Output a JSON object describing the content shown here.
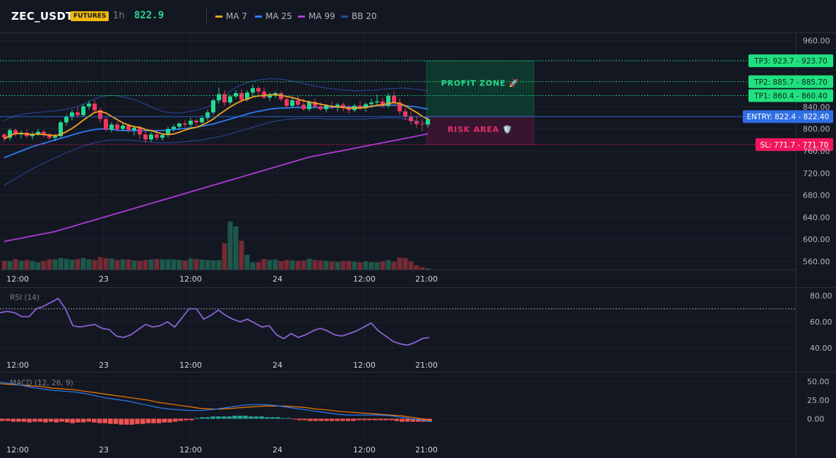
{
  "header": {
    "symbol": "ZEC_USDT",
    "badge": "FUTURES",
    "timeframe": "1h",
    "price": "822.9",
    "legend": [
      {
        "label": "MA 7",
        "color": "#f5a623"
      },
      {
        "label": "MA 25",
        "color": "#2d7cf6"
      },
      {
        "label": "MA 99",
        "color": "#b03ad8"
      },
      {
        "label": "BB 20",
        "color": "#2a4a9a"
      }
    ]
  },
  "colors": {
    "up": "#26d88e",
    "down": "#f2365d",
    "ma7": "#f5a623",
    "ma25": "#2d7cf6",
    "ma99": "#b03ad8",
    "bb": "#2a4a9a",
    "rsi": "#8a63d2",
    "macd": "#2d7cf6",
    "signal": "#f57c00",
    "hist_pos": "#26a69a",
    "hist_neg": "#ef5350",
    "tp": "#21e07f",
    "entry": "#2f6fe4",
    "sl": "#f2165d"
  },
  "chart_data": [
    {
      "type": "candlestick",
      "symbol": "ZEC_USDT",
      "ylim": [
        545,
        975
      ],
      "yticks": [
        "960.00",
        "840.00",
        "800.00",
        "760.00",
        "720.00",
        "680.00",
        "640.00",
        "600.00",
        "560.00"
      ],
      "xticks": [
        "12:00",
        "23",
        "12:00",
        "24",
        "12:00",
        "21:00"
      ],
      "candles": [
        [
          790,
          793,
          777,
          784
        ],
        [
          784,
          802,
          779,
          798
        ],
        [
          798,
          801,
          786,
          790
        ],
        [
          790,
          797,
          783,
          793
        ],
        [
          793,
          799,
          784,
          787
        ],
        [
          787,
          795,
          781,
          791
        ],
        [
          791,
          800,
          787,
          795
        ],
        [
          795,
          798,
          785,
          789
        ],
        [
          789,
          792,
          780,
          784
        ],
        [
          784,
          791,
          778,
          787
        ],
        [
          787,
          815,
          785,
          812
        ],
        [
          812,
          826,
          806,
          822
        ],
        [
          822,
          835,
          816,
          830
        ],
        [
          830,
          840,
          820,
          825
        ],
        [
          825,
          845,
          822,
          841
        ],
        [
          841,
          851,
          835,
          846
        ],
        [
          846,
          852,
          830,
          834
        ],
        [
          834,
          838,
          812,
          818
        ],
        [
          818,
          822,
          795,
          799
        ],
        [
          799,
          812,
          794,
          808
        ],
        [
          808,
          813,
          795,
          800
        ],
        [
          800,
          812,
          796,
          806
        ],
        [
          806,
          810,
          793,
          798
        ],
        [
          798,
          806,
          788,
          802
        ],
        [
          802,
          805,
          782,
          790
        ],
        [
          790,
          796,
          775,
          781
        ],
        [
          781,
          794,
          777,
          790
        ],
        [
          790,
          795,
          779,
          784
        ],
        [
          784,
          792,
          779,
          789
        ],
        [
          789,
          804,
          785,
          800
        ],
        [
          800,
          808,
          795,
          804
        ],
        [
          804,
          812,
          798,
          810
        ],
        [
          810,
          816,
          804,
          808
        ],
        [
          808,
          820,
          803,
          815
        ],
        [
          815,
          818,
          806,
          812
        ],
        [
          812,
          825,
          809,
          820
        ],
        [
          820,
          835,
          815,
          830
        ],
        [
          830,
          855,
          826,
          852
        ],
        [
          852,
          875,
          846,
          863
        ],
        [
          863,
          870,
          842,
          848
        ],
        [
          848,
          862,
          844,
          859
        ],
        [
          859,
          870,
          855,
          865
        ],
        [
          865,
          872,
          848,
          853
        ],
        [
          853,
          870,
          850,
          866
        ],
        [
          866,
          880,
          860,
          874
        ],
        [
          874,
          878,
          858,
          868
        ],
        [
          868,
          875,
          854,
          857
        ],
        [
          857,
          866,
          851,
          861
        ],
        [
          861,
          868,
          856,
          865
        ],
        [
          865,
          868,
          850,
          854
        ],
        [
          854,
          860,
          838,
          842
        ],
        [
          842,
          856,
          838,
          852
        ],
        [
          852,
          860,
          840,
          844
        ],
        [
          844,
          855,
          833,
          836
        ],
        [
          836,
          852,
          832,
          849
        ],
        [
          849,
          855,
          838,
          841
        ],
        [
          841,
          848,
          833,
          836
        ],
        [
          836,
          845,
          830,
          842
        ],
        [
          842,
          850,
          836,
          840
        ],
        [
          840,
          848,
          832,
          844
        ],
        [
          844,
          848,
          832,
          838
        ],
        [
          838,
          843,
          828,
          834
        ],
        [
          834,
          845,
          830,
          842
        ],
        [
          842,
          850,
          834,
          838
        ],
        [
          838,
          848,
          832,
          845
        ],
        [
          845,
          855,
          838,
          848
        ],
        [
          848,
          862,
          843,
          850
        ],
        [
          850,
          856,
          838,
          842
        ],
        [
          842,
          865,
          838,
          860
        ],
        [
          860,
          868,
          842,
          848
        ],
        [
          848,
          856,
          826,
          832
        ],
        [
          832,
          838,
          815,
          822
        ],
        [
          822,
          832,
          808,
          814
        ],
        [
          814,
          824,
          802,
          809
        ],
        [
          809,
          818,
          796,
          808
        ],
        [
          808,
          822,
          803,
          818
        ]
      ],
      "ma7": [
        782,
        788,
        792,
        792,
        791,
        790,
        791,
        790,
        789,
        788,
        790,
        795,
        801,
        808,
        816,
        823,
        830,
        832,
        829,
        823,
        817,
        811,
        807,
        804,
        803,
        799,
        797,
        794,
        791,
        790,
        791,
        794,
        798,
        801,
        803,
        807,
        812,
        818,
        826,
        833,
        840,
        846,
        851,
        854,
        858,
        860,
        861,
        862,
        862,
        861,
        859,
        857,
        854,
        851,
        849,
        847,
        845,
        843,
        841,
        840,
        839,
        838,
        838,
        838,
        839,
        841,
        843,
        844,
        846,
        848,
        846,
        842,
        836,
        830,
        823,
        818
      ],
      "ma25": [
        748,
        752,
        756,
        760,
        764,
        768,
        771,
        774,
        777,
        780,
        783,
        786,
        789,
        792,
        795,
        797,
        799,
        800,
        800,
        799,
        798,
        797,
        797,
        797,
        797,
        797,
        797,
        797,
        797,
        798,
        799,
        800,
        801,
        802,
        803,
        805,
        807,
        809,
        812,
        815,
        818,
        821,
        824,
        827,
        830,
        832,
        834,
        836,
        837,
        838,
        838,
        839,
        839,
        839,
        839,
        839,
        839,
        839,
        839,
        840,
        840,
        840,
        840,
        840,
        841,
        841,
        842,
        842,
        843,
        843,
        843,
        842,
        841,
        840,
        838,
        836
      ],
      "ma99": [
        596,
        598,
        600,
        602,
        604,
        606,
        608,
        610,
        612,
        614,
        617,
        620,
        623,
        626,
        629,
        632,
        635,
        638,
        641,
        644,
        647,
        650,
        653,
        656,
        659,
        662,
        665,
        668,
        671,
        674,
        677,
        680,
        683,
        686,
        689,
        692,
        695,
        698,
        701,
        704,
        707,
        710,
        713,
        716,
        719,
        722,
        725,
        728,
        731,
        734,
        737,
        740,
        743,
        746,
        749,
        751,
        753,
        755,
        757,
        759,
        761,
        763,
        765,
        767,
        769,
        771,
        773,
        775,
        777,
        779,
        781,
        783,
        785,
        787,
        789,
        791
      ],
      "bb_upper": [
        815,
        820,
        824,
        826,
        828,
        829,
        830,
        831,
        832,
        833,
        834,
        836,
        838,
        841,
        845,
        850,
        854,
        858,
        860,
        861,
        860,
        858,
        856,
        853,
        849,
        845,
        840,
        836,
        832,
        830,
        829,
        829,
        830,
        832,
        834,
        837,
        840,
        845,
        852,
        860,
        868,
        875,
        880,
        884,
        887,
        889,
        890,
        891,
        891,
        890,
        889,
        887,
        885,
        882,
        880,
        878,
        876,
        874,
        873,
        872,
        871,
        870,
        869,
        869,
        870,
        870,
        871,
        872,
        873,
        873,
        874,
        874,
        873,
        872,
        871,
        869
      ],
      "bb_lower": [
        698,
        704,
        710,
        716,
        722,
        728,
        733,
        738,
        743,
        748,
        752,
        757,
        761,
        765,
        769,
        772,
        775,
        777,
        779,
        780,
        780,
        780,
        780,
        779,
        778,
        777,
        776,
        775,
        775,
        775,
        775,
        776,
        777,
        778,
        779,
        780,
        782,
        784,
        786,
        788,
        791,
        794,
        797,
        800,
        803,
        806,
        809,
        812,
        814,
        816,
        817,
        818,
        819,
        819,
        819,
        819,
        819,
        818,
        818,
        818,
        818,
        818,
        818,
        818,
        818,
        819,
        819,
        820,
        820,
        820,
        819,
        818,
        817,
        815,
        812,
        809
      ],
      "volume": [
        37,
        36,
        44,
        37,
        40,
        36,
        30,
        36,
        43,
        42,
        48,
        45,
        41,
        44,
        48,
        43,
        40,
        52,
        47,
        46,
        40,
        42,
        42,
        38,
        36,
        40,
        42,
        44,
        43,
        43,
        42,
        40,
        38,
        46,
        44,
        42,
        40,
        38,
        39,
        110,
        200,
        180,
        120,
        62,
        30,
        31,
        44,
        40,
        42,
        35,
        40,
        38,
        36,
        38,
        45,
        40,
        38,
        37,
        33,
        32,
        36,
        36,
        33,
        30,
        34,
        31,
        30,
        35,
        40,
        33,
        50,
        48,
        34,
        18,
        10,
        5
      ],
      "levels": [
        {
          "label": "TP3: 923.7",
          "price": "923.70",
          "value": 923.7,
          "kind": "tp"
        },
        {
          "label": "TP2: 885.7",
          "price": "885.70",
          "value": 885.7,
          "kind": "tp"
        },
        {
          "label": "TP1: 860.4",
          "price": "860.40",
          "value": 860.4,
          "kind": "tp"
        },
        {
          "label": "ENTRY: 822.4",
          "price": "822.40",
          "value": 822.4,
          "kind": "entry"
        },
        {
          "label": "SL: 771.7",
          "price": "771.70",
          "value": 771.7,
          "kind": "sl"
        }
      ],
      "zones": [
        {
          "label": "PROFIT ZONE 🚀",
          "from": 822.4,
          "to": 923.7,
          "kind": "profit"
        },
        {
          "label": "RISK AREA 🛡️",
          "from": 771.7,
          "to": 822.4,
          "kind": "risk"
        }
      ]
    },
    {
      "type": "line",
      "title": "RSI (14)",
      "ylim": [
        35,
        85
      ],
      "yticks": [
        "80.00",
        "60.00",
        "40.00"
      ],
      "overbought": 70,
      "xticks": [
        "12:00",
        "23",
        "12:00",
        "24",
        "12:00",
        "21:00"
      ],
      "values": [
        67,
        68,
        67,
        64,
        64,
        70,
        72,
        75,
        78,
        70,
        57,
        56,
        57,
        58,
        55,
        54,
        49,
        48,
        50,
        54,
        58,
        56,
        57,
        60,
        56,
        63,
        70,
        70,
        62,
        65,
        69,
        65,
        62,
        60,
        62,
        59,
        56,
        57,
        50,
        47,
        51,
        48,
        50,
        53,
        55,
        53,
        50,
        49,
        51,
        53,
        56,
        59,
        53,
        49,
        45,
        43,
        42,
        44,
        47,
        48
      ]
    },
    {
      "type": "line",
      "title": "MACD (12, 26, 9)",
      "ylim": [
        -30,
        60
      ],
      "yticks": [
        "50.00",
        "25.00",
        "0.00"
      ],
      "xticks": [
        "12:00",
        "23",
        "12:00",
        "24",
        "12:00",
        "21:00"
      ],
      "macd": [
        49,
        47,
        45,
        42,
        40,
        38,
        37,
        36,
        34,
        31,
        28,
        26,
        24,
        21,
        18,
        15,
        13,
        12,
        11,
        11,
        12,
        14,
        16,
        18,
        19,
        19,
        18,
        16,
        14,
        12,
        10,
        8,
        6,
        5,
        5,
        5,
        5,
        4,
        2,
        0,
        -2,
        -4
      ],
      "signal": [
        47,
        46,
        45,
        44,
        43,
        41,
        40,
        39,
        37,
        35,
        33,
        31,
        29,
        27,
        25,
        22,
        20,
        18,
        16,
        14,
        13,
        13,
        14,
        15,
        16,
        17,
        17,
        17,
        16,
        15,
        13,
        12,
        10,
        9,
        8,
        7,
        6,
        5,
        4,
        2,
        0,
        -2
      ],
      "histogram": [
        -3,
        -3,
        -4,
        -4,
        -4,
        -5,
        -4,
        -4,
        -5,
        -4,
        -5,
        -4,
        -5,
        -6,
        -5,
        -5,
        -4,
        -5,
        -6,
        -6,
        -7,
        -7,
        -8,
        -8,
        -8,
        -7,
        -7,
        -6,
        -6,
        -6,
        -5,
        -5,
        -4,
        -3,
        -2,
        -2,
        1,
        2,
        2,
        3,
        3,
        3,
        3,
        4,
        4,
        4,
        3,
        3,
        3,
        2,
        2,
        2,
        1,
        1,
        -1,
        -2,
        -2,
        -3,
        -3,
        -3,
        -3,
        -3,
        -3,
        -3,
        -3,
        -3,
        -2,
        -2,
        -2,
        -2,
        -2,
        -2,
        -2,
        -3,
        -4,
        -4,
        -4,
        -4,
        -4,
        -4
      ]
    }
  ]
}
